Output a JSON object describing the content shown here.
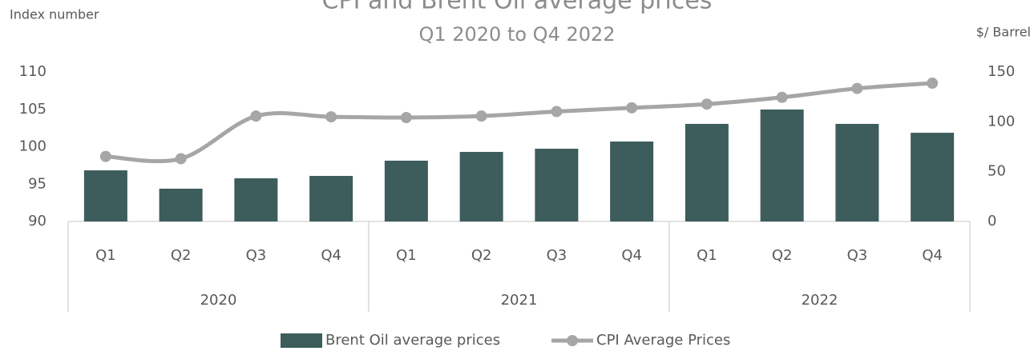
{
  "chart_data": {
    "type": "bar_line",
    "title": "CPI and Brent Oil average prices",
    "subtitle": "Q1 2020 to Q4 2022",
    "y_label": "Index number",
    "y2_label": "$/ Barrel",
    "categories": [
      "Q1",
      "Q2",
      "Q3",
      "Q4",
      "Q1",
      "Q2",
      "Q3",
      "Q4",
      "Q1",
      "Q2",
      "Q3",
      "Q4"
    ],
    "groups": [
      "2020",
      "2021",
      "2022"
    ],
    "series": [
      {
        "name": "Brent Oil average prices",
        "type": "bar",
        "axis": "y2",
        "color": "#3d5c5c",
        "values": [
          51.3,
          32.9,
          43.3,
          45.7,
          61,
          69.8,
          73,
          80.2,
          97.9,
          112.3,
          97.9,
          89
        ]
      },
      {
        "name": "CPI Average Prices",
        "type": "line",
        "axis": "y",
        "color": "#a6a6a6",
        "values": [
          98.7,
          98.4,
          104.1,
          104.0,
          103.9,
          104.1,
          104.7,
          105.2,
          105.7,
          106.6,
          107.8,
          108.5
        ]
      }
    ],
    "ylim": [
      90,
      110
    ],
    "yticks": [
      90,
      95,
      100,
      105,
      110
    ],
    "y2lim": [
      0,
      150
    ],
    "y2ticks": [
      0,
      50,
      100,
      150
    ]
  }
}
